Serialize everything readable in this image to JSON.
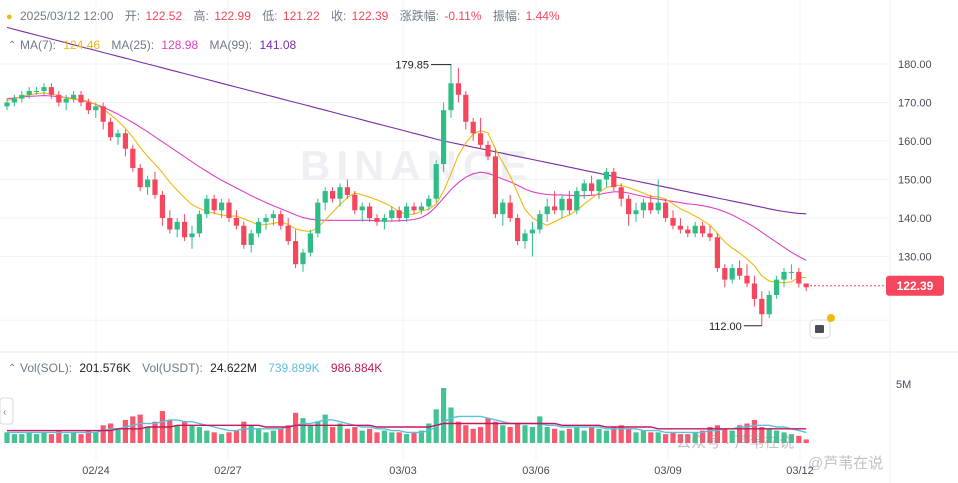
{
  "header": {
    "date": "2025/03/12 12:00",
    "open_label": "开:",
    "open": "122.52",
    "high_label": "高:",
    "high": "122.99",
    "low_label": "低:",
    "low": "121.22",
    "close_label": "收:",
    "close": "122.39",
    "change_label": "涨跌幅:",
    "change": "-0.11%",
    "amp_label": "振幅:",
    "amp": "1.44%"
  },
  "ma_legend": {
    "ma7_label": "MA(7):",
    "ma7": "124.46",
    "ma25_label": "MA(25):",
    "ma25": "128.98",
    "ma99_label": "MA(99):",
    "ma99": "141.08"
  },
  "vol_legend": {
    "sol_label": "Vol(SOL):",
    "sol": "201.576K",
    "usdt_label": "Vol(USDT):",
    "usdt": "24.622M",
    "ma1": "739.899K",
    "ma2": "986.884K"
  },
  "price_axis": [
    "180.00",
    "170.00",
    "160.00",
    "150.00",
    "140.00",
    "130.00"
  ],
  "vol_axis": "5M",
  "x_axis": [
    "02/24",
    "02/27",
    "03/03",
    "03/06",
    "03/09",
    "03/12"
  ],
  "markers": {
    "high": "179.85",
    "low": "112.00"
  },
  "current_price": "122.39",
  "watermark": "BINANCE",
  "overlay_watermark": [
    "公众号 · 芦苇在说",
    "@芦苇在说"
  ],
  "colors": {
    "up": "#2ebd85",
    "down": "#f6465d",
    "ma7": "#f0b90b",
    "ma25": "#e040c8",
    "ma99": "#7b2ca8",
    "vol_ma1": "#5bc0de",
    "vol_ma2": "#c2185b"
  },
  "chart_data": {
    "type": "candlestick",
    "interval": "12h",
    "x_range": [
      "2025/02/22",
      "2025/03/12"
    ],
    "ylim": [
      110,
      185
    ],
    "grid": true,
    "candles": [
      [
        169,
        171,
        168,
        170
      ],
      [
        170,
        172,
        169,
        171
      ],
      [
        171,
        173,
        170,
        172
      ],
      [
        172,
        174,
        171,
        173
      ],
      [
        173,
        174,
        172,
        173
      ],
      [
        173,
        175,
        172,
        174
      ],
      [
        174,
        175,
        171,
        172
      ],
      [
        172,
        173,
        169,
        170
      ],
      [
        170,
        172,
        168,
        171
      ],
      [
        171,
        173,
        170,
        172
      ],
      [
        172,
        173,
        169,
        170
      ],
      [
        170,
        171,
        167,
        168
      ],
      [
        168,
        170,
        166,
        169
      ],
      [
        169,
        170,
        163,
        165
      ],
      [
        165,
        166,
        160,
        161
      ],
      [
        161,
        163,
        159,
        162
      ],
      [
        162,
        163,
        156,
        158
      ],
      [
        158,
        159,
        152,
        153
      ],
      [
        153,
        154,
        147,
        148
      ],
      [
        148,
        151,
        146,
        150
      ],
      [
        150,
        152,
        145,
        146
      ],
      [
        146,
        147,
        138,
        140
      ],
      [
        140,
        142,
        136,
        137
      ],
      [
        137,
        140,
        135,
        139
      ],
      [
        139,
        141,
        134,
        135
      ],
      [
        135,
        138,
        132,
        136
      ],
      [
        136,
        142,
        135,
        141
      ],
      [
        141,
        146,
        140,
        145
      ],
      [
        145,
        146,
        141,
        142
      ],
      [
        142,
        145,
        140,
        144
      ],
      [
        144,
        145,
        139,
        140
      ],
      [
        140,
        142,
        137,
        138
      ],
      [
        138,
        139,
        132,
        133
      ],
      [
        133,
        137,
        131,
        136
      ],
      [
        136,
        140,
        135,
        139
      ],
      [
        139,
        141,
        137,
        140
      ],
      [
        140,
        142,
        138,
        141
      ],
      [
        141,
        142,
        137,
        138
      ],
      [
        138,
        140,
        133,
        134
      ],
      [
        134,
        137,
        127,
        128
      ],
      [
        128,
        132,
        126,
        131
      ],
      [
        131,
        137,
        130,
        136
      ],
      [
        136,
        145,
        135,
        144
      ],
      [
        144,
        148,
        142,
        147
      ],
      [
        147,
        148,
        144,
        145
      ],
      [
        145,
        149,
        143,
        148
      ],
      [
        148,
        150,
        145,
        146
      ],
      [
        146,
        147,
        141,
        142
      ],
      [
        142,
        144,
        139,
        143
      ],
      [
        143,
        144,
        139,
        140
      ],
      [
        140,
        141,
        138,
        139
      ],
      [
        139,
        141,
        137,
        140
      ],
      [
        140,
        143,
        139,
        142
      ],
      [
        142,
        143,
        139,
        140
      ],
      [
        140,
        144,
        139,
        143
      ],
      [
        143,
        144,
        141,
        142
      ],
      [
        142,
        144,
        141,
        143
      ],
      [
        143,
        146,
        142,
        145
      ],
      [
        145,
        155,
        144,
        154
      ],
      [
        154,
        170,
        152,
        168
      ],
      [
        168,
        180,
        166,
        175
      ],
      [
        175,
        179,
        170,
        172
      ],
      [
        172,
        173,
        163,
        165
      ],
      [
        165,
        166,
        160,
        162
      ],
      [
        162,
        166,
        158,
        159
      ],
      [
        159,
        160,
        155,
        156
      ],
      [
        156,
        158,
        140,
        141
      ],
      [
        141,
        145,
        138,
        144
      ],
      [
        144,
        146,
        139,
        140
      ],
      [
        140,
        141,
        133,
        134
      ],
      [
        134,
        137,
        132,
        136
      ],
      [
        136,
        139,
        130,
        137
      ],
      [
        137,
        142,
        136,
        141
      ],
      [
        141,
        145,
        139,
        143
      ],
      [
        143,
        147,
        141,
        142
      ],
      [
        142,
        146,
        140,
        145
      ],
      [
        145,
        147,
        141,
        142
      ],
      [
        142,
        148,
        141,
        147
      ],
      [
        147,
        150,
        145,
        149
      ],
      [
        149,
        151,
        146,
        147
      ],
      [
        147,
        150,
        145,
        150
      ],
      [
        150,
        153,
        148,
        152
      ],
      [
        152,
        153,
        147,
        148
      ],
      [
        148,
        149,
        143,
        145
      ],
      [
        145,
        146,
        138,
        141
      ],
      [
        141,
        144,
        139,
        142
      ],
      [
        142,
        145,
        140,
        144
      ],
      [
        144,
        146,
        141,
        142
      ],
      [
        142,
        150,
        141,
        144
      ],
      [
        144,
        145,
        139,
        140
      ],
      [
        140,
        142,
        137,
        138
      ],
      [
        138,
        140,
        136,
        137
      ],
      [
        137,
        138,
        135,
        136
      ],
      [
        136,
        139,
        135,
        138
      ],
      [
        138,
        139,
        135,
        136
      ],
      [
        136,
        138,
        134,
        135
      ],
      [
        135,
        136,
        126,
        127
      ],
      [
        127,
        128,
        122,
        124
      ],
      [
        124,
        128,
        123,
        127
      ],
      [
        127,
        129,
        124,
        125
      ],
      [
        125,
        128,
        122,
        123
      ],
      [
        123,
        125,
        117,
        119
      ],
      [
        119,
        121,
        112,
        115
      ],
      [
        115,
        121,
        114,
        120
      ],
      [
        120,
        125,
        119,
        124
      ],
      [
        124,
        127,
        122,
        126
      ],
      [
        126,
        128,
        124,
        126
      ],
      [
        126,
        127,
        122,
        123
      ],
      [
        123,
        123,
        121,
        122
      ]
    ],
    "ma7": [
      170.5,
      171,
      171.5,
      172,
      172.3,
      172.5,
      172.2,
      171.8,
      171.2,
      170.8,
      170.7,
      170.3,
      169.5,
      168.3,
      166.8,
      165.2,
      163.3,
      161,
      158.3,
      156,
      154,
      151.8,
      149.3,
      147.2,
      145.2,
      143.5,
      142.5,
      141.8,
      141.2,
      140.8,
      140.5,
      140.5,
      139.8,
      139,
      138.2,
      138.3,
      138.6,
      139,
      138.3,
      137.2,
      136.7,
      136.5,
      137.5,
      139.5,
      141.5,
      143.5,
      145.3,
      146.5,
      146,
      145.4,
      144.7,
      143.9,
      142.9,
      141.7,
      140.9,
      141,
      141.8,
      142.3,
      143.6,
      147,
      151.5,
      156.3,
      159.5,
      161.8,
      162.7,
      162.1,
      157.9,
      154.4,
      150.9,
      146.5,
      142.2,
      140.1,
      138.9,
      138.1,
      139,
      140,
      140.8,
      142,
      143.6,
      145.1,
      146.6,
      147.9,
      148.4,
      148.5,
      147.9,
      147.2,
      146.5,
      145.6,
      145.5,
      144.9,
      143.7,
      142.4,
      141.5,
      140.5,
      139.4,
      138.1,
      136,
      133.8,
      132.2,
      130.9,
      129.4,
      127.6,
      125,
      123.6,
      123.3,
      123.2,
      123.4,
      124.6,
      124.5
    ],
    "ma25": [
      171,
      171.2,
      171.4,
      171.6,
      171.7,
      171.8,
      171.7,
      171.5,
      171.3,
      171,
      170.6,
      170.1,
      169.5,
      168.8,
      167.9,
      167,
      165.9,
      164.8,
      163.6,
      162.4,
      161.1,
      159.8,
      158.5,
      157.2,
      155.9,
      154.6,
      153.3,
      152.1,
      150.9,
      149.8,
      148.8,
      147.8,
      146.8,
      145.8,
      144.9,
      144,
      143.2,
      142.4,
      141.6,
      140.8,
      140.1,
      139.7,
      139.5,
      139.4,
      139.4,
      139.4,
      139.4,
      139.4,
      139.4,
      139.4,
      139.3,
      139.2,
      139.2,
      139.3,
      139.4,
      139.6,
      140.1,
      141.2,
      143,
      145.2,
      147.4,
      149.2,
      150.6,
      151.5,
      151.9,
      151.6,
      150.9,
      150.1,
      149.4,
      148.5,
      147.5,
      146.8,
      146.4,
      146.1,
      146,
      146,
      145.9,
      145.8,
      145.8,
      145.9,
      146.1,
      146.5,
      146.8,
      146.8,
      146.5,
      146,
      145.6,
      145.2,
      144.9,
      144.6,
      144.3,
      144,
      143.7,
      143.5,
      143.2,
      142.8,
      142.3,
      141.6,
      140.8,
      139.8,
      138.8,
      137.6,
      136.3,
      135,
      133.7,
      132.4,
      131.1,
      130,
      128.98
    ],
    "ma99": [
      189.5,
      189,
      188.5,
      188,
      187.5,
      187,
      186.5,
      186,
      185.5,
      185,
      184.5,
      184,
      183.5,
      183,
      182.5,
      182,
      181.5,
      181,
      180.5,
      180,
      179.5,
      179,
      178.5,
      178,
      177.5,
      177,
      176.5,
      176,
      175.5,
      175,
      174.5,
      174,
      173.5,
      173,
      172.5,
      172,
      171.5,
      171,
      170.5,
      170,
      169.5,
      169,
      168.5,
      168,
      167.5,
      167,
      166.5,
      166,
      165.5,
      165,
      164.5,
      164,
      163.5,
      163,
      162.5,
      162,
      161.5,
      161,
      160.5,
      160,
      159.6,
      159.2,
      158.8,
      158.4,
      158,
      157.6,
      157.2,
      156.8,
      156.4,
      156,
      155.6,
      155.2,
      154.8,
      154.4,
      154,
      153.6,
      153.2,
      152.8,
      152.4,
      152,
      151.6,
      151.2,
      150.8,
      150.4,
      150,
      149.6,
      149.2,
      148.8,
      148.4,
      148,
      147.6,
      147.2,
      146.8,
      146.4,
      146,
      145.6,
      145.2,
      144.8,
      144.4,
      144,
      143.6,
      143.2,
      142.8,
      142.4,
      142,
      141.7,
      141.4,
      141.2,
      141.08
    ],
    "volume": [
      0.6,
      0.5,
      0.5,
      0.6,
      0.5,
      0.6,
      0.5,
      0.7,
      0.5,
      0.6,
      0.5,
      0.7,
      0.6,
      1.0,
      1.1,
      0.8,
      1.3,
      1.5,
      1.6,
      0.9,
      1.2,
      1.8,
      1.3,
      1.0,
      1.2,
      1.0,
      0.9,
      0.7,
      0.6,
      0.5,
      0.6,
      0.7,
      1.2,
      1.0,
      0.8,
      0.6,
      0.7,
      0.8,
      1.0,
      1.7,
      1.4,
      1.0,
      1.2,
      1.6,
      0.9,
      1.1,
      0.8,
      0.9,
      0.7,
      0.8,
      0.6,
      0.7,
      0.6,
      0.6,
      0.5,
      0.6,
      0.7,
      1.1,
      1.9,
      3.1,
      2.0,
      1.2,
      1.0,
      0.8,
      0.9,
      1.4,
      1.2,
      1.0,
      0.9,
      1.1,
      1.0,
      0.9,
      1.5,
      0.9,
      0.8,
      0.7,
      0.8,
      0.9,
      0.7,
      0.9,
      0.8,
      0.7,
      0.9,
      1.0,
      0.8,
      0.6,
      0.7,
      0.6,
      0.6,
      0.5,
      0.6,
      0.5,
      0.5,
      0.6,
      0.7,
      0.9,
      1.0,
      0.8,
      0.7,
      1.0,
      1.1,
      1.3,
      0.9,
      0.8,
      0.7,
      0.6,
      0.5,
      0.4,
      0.2
    ],
    "vol_ma1": [
      0.6,
      0.6,
      0.6,
      0.6,
      0.6,
      0.6,
      0.6,
      0.6,
      0.6,
      0.6,
      0.6,
      0.6,
      0.6,
      0.7,
      0.8,
      0.8,
      0.9,
      1.0,
      1.1,
      1.1,
      1.1,
      1.2,
      1.3,
      1.3,
      1.2,
      1.2,
      1.1,
      1.0,
      0.9,
      0.8,
      0.7,
      0.7,
      0.8,
      0.8,
      0.8,
      0.8,
      0.8,
      0.8,
      0.9,
      1.0,
      1.1,
      1.1,
      1.2,
      1.3,
      1.3,
      1.2,
      1.1,
      1.0,
      0.9,
      0.9,
      0.8,
      0.8,
      0.7,
      0.7,
      0.6,
      0.6,
      0.6,
      0.7,
      0.9,
      1.2,
      1.4,
      1.5,
      1.5,
      1.5,
      1.5,
      1.4,
      1.3,
      1.2,
      1.1,
      1.1,
      1.1,
      1.1,
      1.1,
      1.0,
      1.0,
      0.9,
      0.9,
      0.9,
      0.9,
      0.9,
      0.9,
      0.8,
      0.8,
      0.8,
      0.8,
      0.8,
      0.7,
      0.7,
      0.7,
      0.6,
      0.6,
      0.6,
      0.6,
      0.6,
      0.6,
      0.7,
      0.7,
      0.8,
      0.8,
      0.9,
      0.9,
      1.0,
      1.0,
      1.0,
      0.9,
      0.9,
      0.8,
      0.7,
      0.6
    ],
    "vol_ma2": [
      0.7,
      0.7,
      0.7,
      0.7,
      0.7,
      0.7,
      0.7,
      0.7,
      0.7,
      0.7,
      0.7,
      0.7,
      0.7,
      0.7,
      0.7,
      0.8,
      0.8,
      0.8,
      0.8,
      0.9,
      0.9,
      0.9,
      0.9,
      1.0,
      1.0,
      1.0,
      1.0,
      1.0,
      1.0,
      1.0,
      1.0,
      1.0,
      1.0,
      1.0,
      1.0,
      0.9,
      0.9,
      0.9,
      0.9,
      1.0,
      1.0,
      1.0,
      1.0,
      1.0,
      1.0,
      1.0,
      1.0,
      1.0,
      1.0,
      1.0,
      0.9,
      0.9,
      0.9,
      0.9,
      0.9,
      0.9,
      0.9,
      0.9,
      1.0,
      1.1,
      1.1,
      1.1,
      1.1,
      1.1,
      1.1,
      1.1,
      1.1,
      1.1,
      1.1,
      1.1,
      1.1,
      1.1,
      1.1,
      1.1,
      1.1,
      1.0,
      1.0,
      1.0,
      1.0,
      1.0,
      1.0,
      0.9,
      0.9,
      0.9,
      0.9,
      0.9,
      0.9,
      0.9,
      0.8,
      0.8,
      0.8,
      0.8,
      0.8,
      0.8,
      0.8,
      0.8,
      0.8,
      0.8,
      0.8,
      0.8,
      0.8,
      0.8,
      0.8,
      0.8,
      0.8,
      0.8,
      0.8,
      0.8,
      0.8
    ],
    "vol_ylim": [
      0,
      6.5
    ]
  }
}
